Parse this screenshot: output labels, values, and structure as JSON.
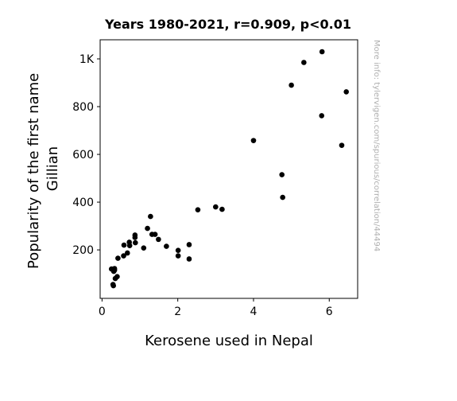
{
  "chart_data": {
    "type": "scatter",
    "title": "Years 1980-2021, r=0.909, p<0.01",
    "xlabel": "Kerosene used in Nepal",
    "ylabel_lines": [
      "Popularity of the first name",
      "Gillian"
    ],
    "watermark": "More info: tylervigen.com/spurious/correlation/44494",
    "xlim": [
      -0.05,
      6.75
    ],
    "ylim": [
      -3,
      1080
    ],
    "x_ticks": [
      {
        "value": 0,
        "label": "0"
      },
      {
        "value": 2,
        "label": "2"
      },
      {
        "value": 4,
        "label": "4"
      },
      {
        "value": 6,
        "label": "6"
      }
    ],
    "y_ticks": [
      {
        "value": 200,
        "label": "200"
      },
      {
        "value": 400,
        "label": "400"
      },
      {
        "value": 600,
        "label": "600"
      },
      {
        "value": 800,
        "label": "800"
      },
      {
        "value": 1000,
        "label": "1K"
      }
    ],
    "marker_color": "#000000",
    "grid": false,
    "points": [
      {
        "x": 0.25,
        "y": 120
      },
      {
        "x": 0.29,
        "y": 55
      },
      {
        "x": 0.3,
        "y": 50
      },
      {
        "x": 0.31,
        "y": 110
      },
      {
        "x": 0.33,
        "y": 122
      },
      {
        "x": 0.33,
        "y": 115
      },
      {
        "x": 0.35,
        "y": 80
      },
      {
        "x": 0.4,
        "y": 88
      },
      {
        "x": 0.42,
        "y": 165
      },
      {
        "x": 0.57,
        "y": 175
      },
      {
        "x": 0.58,
        "y": 220
      },
      {
        "x": 0.67,
        "y": 187
      },
      {
        "x": 0.72,
        "y": 232
      },
      {
        "x": 0.73,
        "y": 218
      },
      {
        "x": 0.87,
        "y": 262
      },
      {
        "x": 0.87,
        "y": 252
      },
      {
        "x": 0.88,
        "y": 230
      },
      {
        "x": 1.1,
        "y": 208
      },
      {
        "x": 1.2,
        "y": 290
      },
      {
        "x": 1.28,
        "y": 340
      },
      {
        "x": 1.32,
        "y": 265
      },
      {
        "x": 1.4,
        "y": 265
      },
      {
        "x": 1.49,
        "y": 244
      },
      {
        "x": 1.7,
        "y": 215
      },
      {
        "x": 2.01,
        "y": 198
      },
      {
        "x": 2.01,
        "y": 175
      },
      {
        "x": 2.3,
        "y": 222
      },
      {
        "x": 2.3,
        "y": 162
      },
      {
        "x": 2.53,
        "y": 368
      },
      {
        "x": 3.0,
        "y": 380
      },
      {
        "x": 3.17,
        "y": 370
      },
      {
        "x": 4.0,
        "y": 658
      },
      {
        "x": 4.75,
        "y": 515
      },
      {
        "x": 4.77,
        "y": 420
      },
      {
        "x": 5.0,
        "y": 890
      },
      {
        "x": 5.33,
        "y": 985
      },
      {
        "x": 5.8,
        "y": 762
      },
      {
        "x": 5.81,
        "y": 1030
      },
      {
        "x": 6.33,
        "y": 638
      },
      {
        "x": 6.45,
        "y": 862
      }
    ]
  }
}
